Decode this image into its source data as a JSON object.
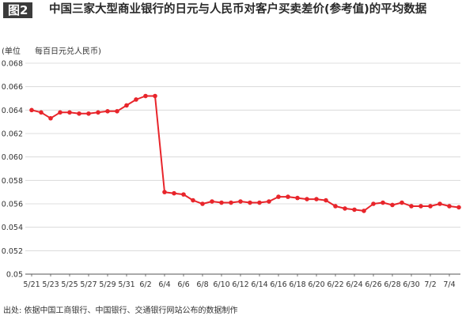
{
  "header": {
    "figure_label": "图2",
    "title": "中国三家大型商业银行的日元与人民币对客户买卖差价(参考值)的平均数据"
  },
  "unit": {
    "prefix": "(单位",
    "text": "每百日元兑人民币)"
  },
  "source": "出处: 依据中国工商银行、中国银行、交通银行网站公布的数据制作",
  "colors": {
    "line": "#e8252b",
    "grid": "#d4d4d4",
    "axis": "#555555"
  },
  "chart_data": {
    "type": "line",
    "title": "中国三家大型商业银行的日元与人民币对客户买卖差价(参考值)的平均数据",
    "ylabel": "每百日元兑人民币",
    "ylim": [
      0.05,
      0.068
    ],
    "yticks": [
      "0.05",
      "0.052",
      "0.054",
      "0.056",
      "0.058",
      "0.060",
      "0.062",
      "0.064",
      "0.066",
      "0.068"
    ],
    "grid": true,
    "xtick_labels": [
      "5/21",
      "5/23",
      "5/25",
      "5/27",
      "5/29",
      "5/31",
      "6/2",
      "6/4",
      "6/6",
      "6/8",
      "6/10",
      "6/12",
      "6/14",
      "6/16",
      "6/18",
      "6/20",
      "6/22",
      "6/24",
      "6/26",
      "6/28",
      "6/30",
      "7/2",
      "7/4"
    ],
    "values": [
      0.064,
      0.0638,
      0.0633,
      0.0638,
      0.0638,
      0.0637,
      0.0637,
      0.0638,
      0.0639,
      0.0639,
      0.0644,
      0.0649,
      0.0652,
      0.0652,
      0.057,
      0.0569,
      0.0568,
      0.0563,
      0.056,
      0.0562,
      0.0561,
      0.0561,
      0.0562,
      0.0561,
      0.0561,
      0.0562,
      0.0566,
      0.0566,
      0.0565,
      0.0564,
      0.0564,
      0.0563,
      0.0558,
      0.0556,
      0.0555,
      0.0554,
      0.056,
      0.0561,
      0.0559,
      0.0561,
      0.0558,
      0.0558,
      0.0558,
      0.056,
      0.0558,
      0.0557
    ]
  }
}
